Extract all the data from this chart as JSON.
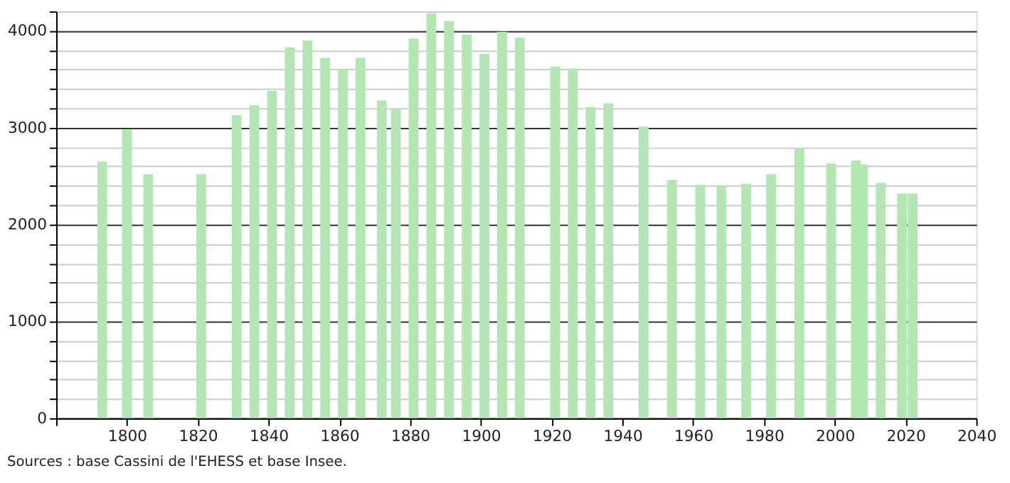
{
  "chart_data": {
    "type": "bar",
    "color": "#b3e6b3",
    "x": [
      1793,
      1800,
      1806,
      1821,
      1831,
      1836,
      1841,
      1846,
      1851,
      1856,
      1861,
      1866,
      1872,
      1876,
      1881,
      1886,
      1891,
      1896,
      1901,
      1906,
      1911,
      1921,
      1926,
      1931,
      1936,
      1946,
      1954,
      1962,
      1968,
      1975,
      1982,
      1990,
      1999,
      2006,
      2008,
      2013,
      2019,
      2022
    ],
    "values": [
      2650,
      2980,
      2520,
      2520,
      3130,
      3230,
      3380,
      3830,
      3900,
      3720,
      3600,
      3720,
      3280,
      3190,
      3920,
      4180,
      4100,
      3960,
      3760,
      3990,
      3930,
      3630,
      3610,
      3210,
      3250,
      3010,
      2460,
      2410,
      2400,
      2420,
      2520,
      2790,
      2630,
      2660,
      2620,
      2430,
      2320,
      2320
    ],
    "xlim": [
      1780,
      2040
    ],
    "xticks": [
      {
        "value": 1780,
        "label": null
      },
      1800,
      1820,
      1840,
      1860,
      1880,
      1900,
      1920,
      1940,
      1960,
      1980,
      2000,
      2020,
      2040
    ],
    "ylim": [
      0,
      4200
    ],
    "yticks": [
      0,
      {
        "value": 200,
        "label": null
      },
      {
        "value": 400,
        "label": null
      },
      {
        "value": 600,
        "label": null
      },
      {
        "value": 800,
        "label": null
      },
      1000,
      {
        "value": 1200,
        "label": null
      },
      {
        "value": 1400,
        "label": null
      },
      {
        "value": 1600,
        "label": null
      },
      {
        "value": 1800,
        "label": null
      },
      2000,
      {
        "value": 2200,
        "label": null
      },
      {
        "value": 2400,
        "label": null
      },
      {
        "value": 2600,
        "label": null
      },
      {
        "value": 2800,
        "label": null
      },
      3000,
      {
        "value": 3200,
        "label": null
      },
      {
        "value": 3400,
        "label": null
      },
      {
        "value": 3600,
        "label": null
      },
      {
        "value": 3800,
        "label": null
      },
      4000,
      {
        "value": 4200,
        "label": null
      }
    ],
    "grid": "y",
    "annotations": [
      "Sources : base Cassini de l'EHESS et base Insee."
    ]
  }
}
